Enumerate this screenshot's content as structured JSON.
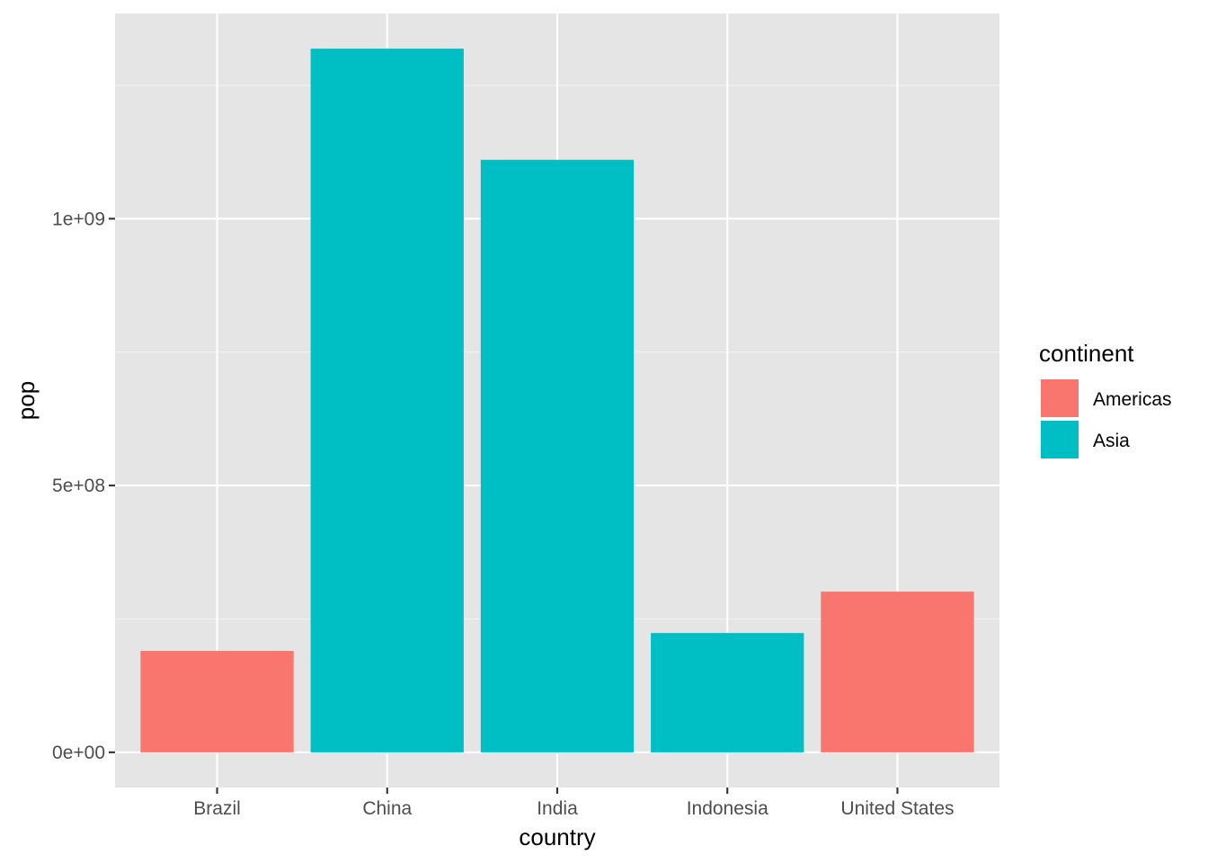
{
  "chart_data": {
    "type": "bar",
    "title": "",
    "xlabel": "country",
    "ylabel": "pop",
    "categories": [
      "Brazil",
      "China",
      "India",
      "Indonesia",
      "United States"
    ],
    "values": [
      190010647,
      1318683096,
      1110396331,
      223547000,
      301139947
    ],
    "groups": [
      "Americas",
      "Asia",
      "Asia",
      "Asia",
      "Americas"
    ],
    "ylim": [
      -65934155,
      1384617251
    ],
    "yticks": [
      {
        "value": 0,
        "label": "0e+00"
      },
      {
        "value": 500000000,
        "label": "5e+08"
      },
      {
        "value": 1000000000,
        "label": "1e+09"
      }
    ],
    "yminor": [
      250000000,
      750000000,
      1250000000
    ],
    "grid": true,
    "background": "#e5e5e5",
    "legend": {
      "title": "continent",
      "placement": "right",
      "entries": [
        {
          "label": "Americas",
          "color": "#f8766d"
        },
        {
          "label": "Asia",
          "color": "#00bfc4"
        }
      ]
    }
  }
}
